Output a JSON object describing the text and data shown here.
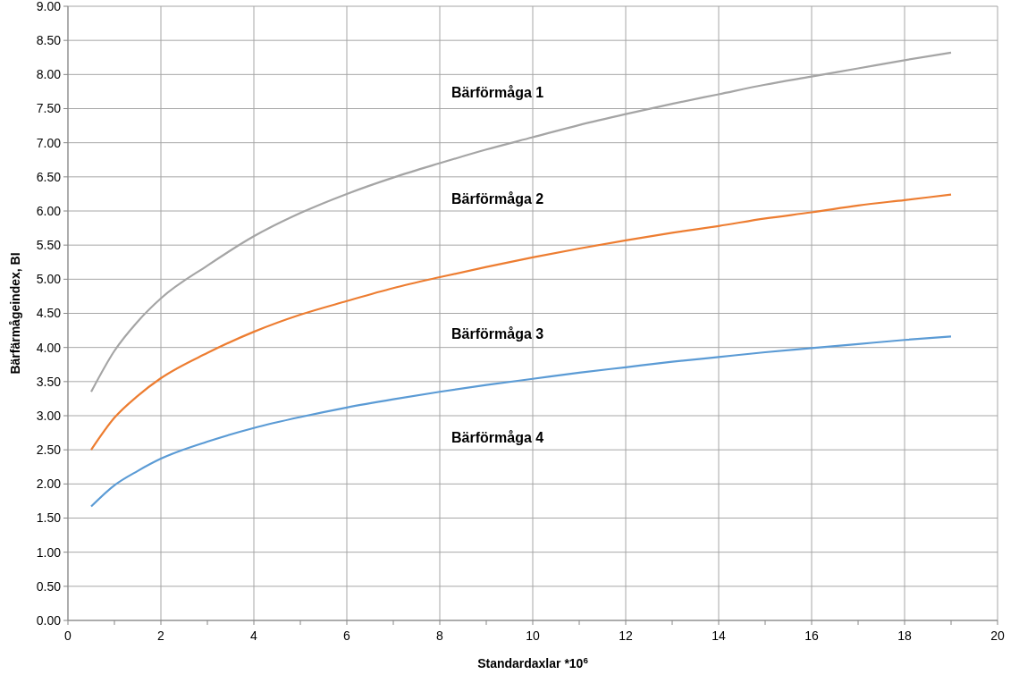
{
  "chart_data": {
    "type": "line",
    "xlabel": "Standardaxlar *10$^{6}$",
    "ylabel": "Bärfärmågeindex, BI",
    "xlim": [
      0,
      20
    ],
    "xticks": [
      0,
      {
        "value": 1,
        "label": null
      },
      2,
      {
        "value": 3,
        "label": null
      },
      4,
      {
        "value": 5,
        "label": null
      },
      6,
      {
        "value": 7,
        "label": null
      },
      8,
      {
        "value": 9,
        "label": null
      },
      10,
      {
        "value": 11,
        "label": null
      },
      12,
      {
        "value": 13,
        "label": null
      },
      14,
      {
        "value": 15,
        "label": null
      },
      16,
      {
        "value": 17,
        "label": null
      },
      18,
      {
        "value": 19,
        "label": null
      },
      20
    ],
    "ylim": [
      0,
      9
    ],
    "yticks": [
      {
        "value": 0,
        "label": "0.00"
      },
      {
        "value": 0.5,
        "label": "0.50"
      },
      {
        "value": 1,
        "label": "1.00"
      },
      {
        "value": 1.5,
        "label": "1.50"
      },
      {
        "value": 2,
        "label": "2.00"
      },
      {
        "value": 2.5,
        "label": "2.50"
      },
      {
        "value": 3,
        "label": "3.00"
      },
      {
        "value": 3.5,
        "label": "3.50"
      },
      {
        "value": 4,
        "label": "4.00"
      },
      {
        "value": 4.5,
        "label": "4.50"
      },
      {
        "value": 5,
        "label": "5.00"
      },
      {
        "value": 5.5,
        "label": "5.50"
      },
      {
        "value": 6,
        "label": "6.00"
      },
      {
        "value": 6.5,
        "label": "6.50"
      },
      {
        "value": 7,
        "label": "7.00"
      },
      {
        "value": 7.5,
        "label": "7.50"
      },
      {
        "value": 8,
        "label": "8.00"
      },
      {
        "value": 8.5,
        "label": "8.50"
      },
      {
        "value": 9,
        "label": "9.00"
      }
    ],
    "grid": true,
    "marker": "none",
    "line_style": "solid",
    "x": [
      0.5,
      1,
      1.5,
      2,
      3,
      4,
      5,
      6,
      7,
      8,
      9,
      10,
      11,
      12,
      13,
      14,
      15,
      16,
      17,
      18,
      19
    ],
    "series": [
      {
        "color": "#a5a5a5",
        "values": [
          3.35,
          3.95,
          4.38,
          4.72,
          5.2,
          5.63,
          5.97,
          6.25,
          6.49,
          6.7,
          6.9,
          7.08,
          7.26,
          7.42,
          7.57,
          7.71,
          7.85,
          7.97,
          8.09,
          8.21,
          8.32
        ]
      },
      {
        "color": "#ed7d31",
        "values": [
          2.5,
          2.97,
          3.29,
          3.55,
          3.92,
          4.23,
          4.48,
          4.68,
          4.87,
          5.03,
          5.18,
          5.32,
          5.45,
          5.57,
          5.68,
          5.78,
          5.89,
          5.98,
          6.08,
          6.16,
          6.24
        ]
      },
      {
        "color": "#5b9bd5",
        "values": [
          1.67,
          1.98,
          2.19,
          2.37,
          2.62,
          2.82,
          2.98,
          3.12,
          3.24,
          3.35,
          3.45,
          3.54,
          3.63,
          3.71,
          3.79,
          3.86,
          3.93,
          3.99,
          4.05,
          4.11,
          4.16
        ]
      }
    ],
    "annotations": [
      "Bärförmåga 1",
      "Bärförmåga 2",
      "Bärförmåga 3",
      "Bärförmåga 4"
    ]
  }
}
